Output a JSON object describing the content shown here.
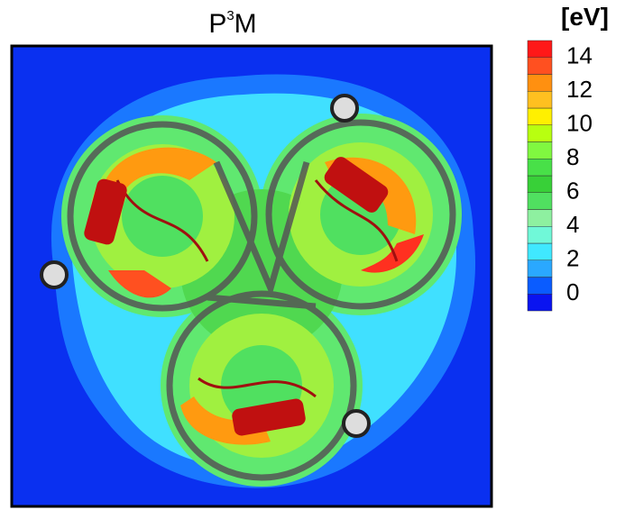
{
  "title": [
    "P",
    "3",
    "M"
  ],
  "colorbar": {
    "label": "[eV]",
    "lim": [
      -1,
      15
    ],
    "ticks": [
      0,
      2,
      4,
      6,
      8,
      10,
      12,
      14
    ],
    "colors": [
      "#0a14f0",
      "#0a5cff",
      "#2aa8ff",
      "#40e8ff",
      "#70f8d8",
      "#8ef0a0",
      "#50e060",
      "#38d038",
      "#48e048",
      "#80f840",
      "#b8ff10",
      "#fff000",
      "#ffc020",
      "#ff9010",
      "#ff5020",
      "#ff1818"
    ]
  }
}
